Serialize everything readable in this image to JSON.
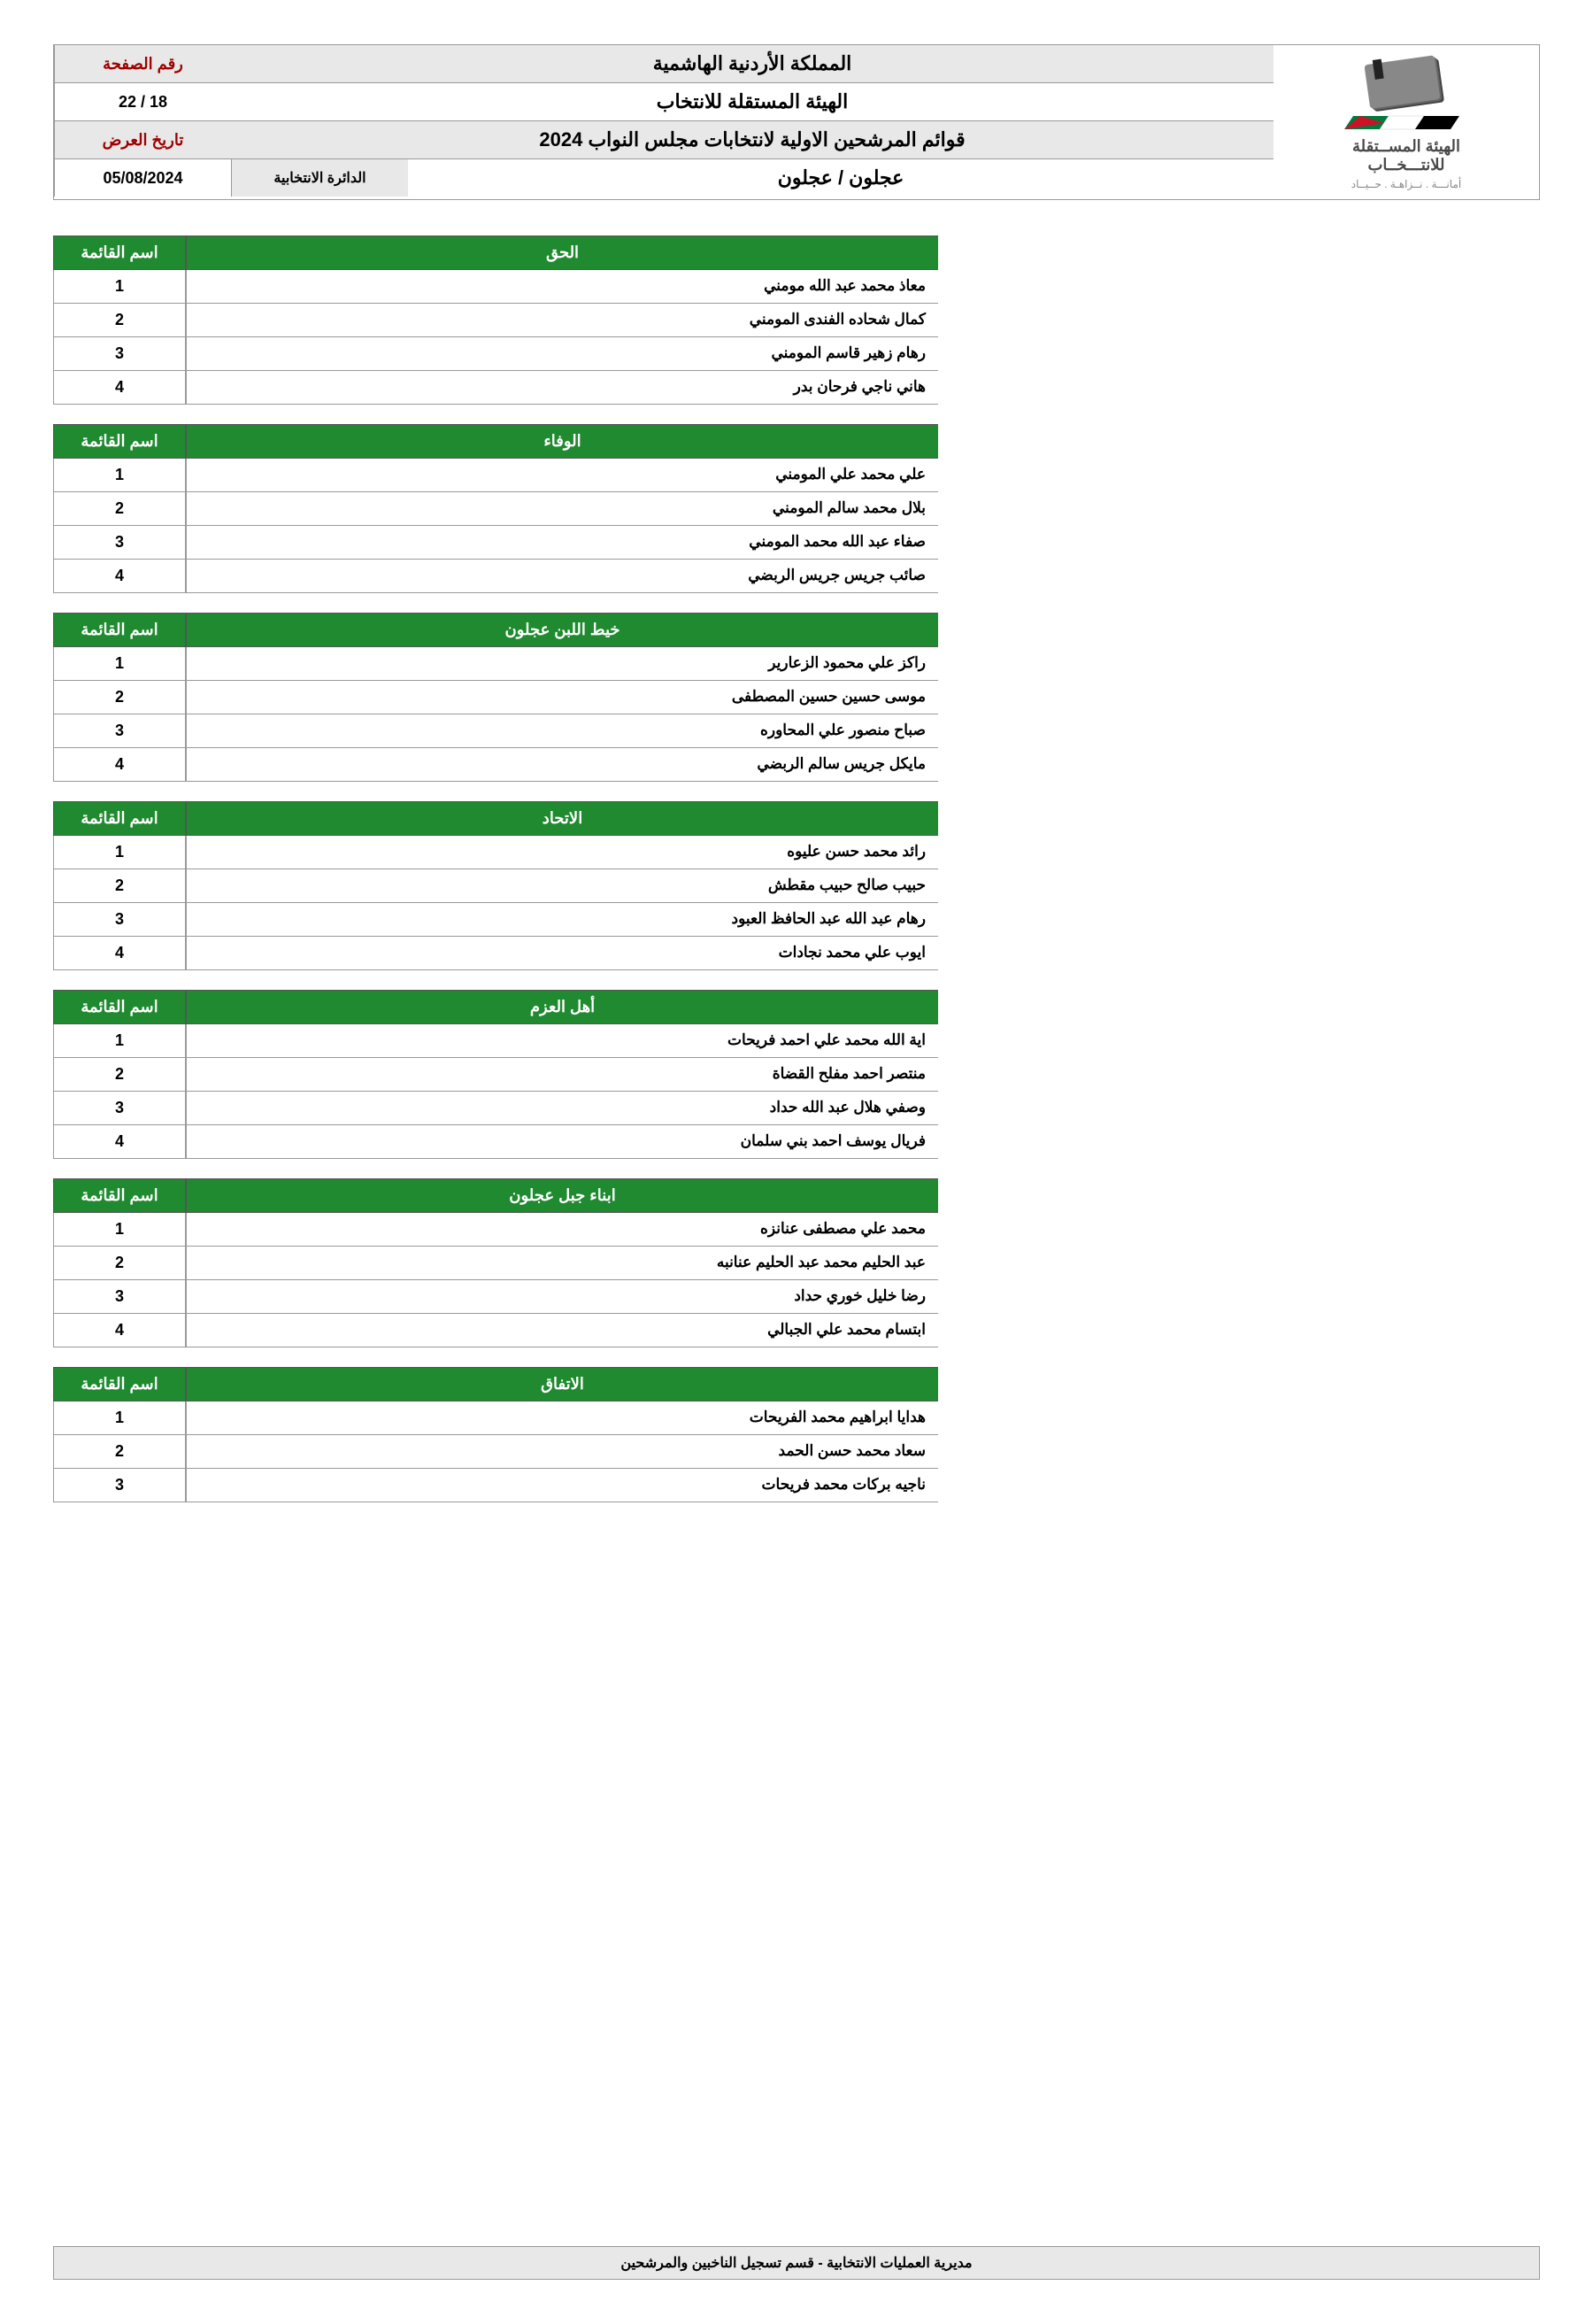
{
  "header": {
    "page_label": "رقم الصفحة",
    "page_value": "18 / 22",
    "country_title": "المملكة الأردنية الهاشمية",
    "org_title": "الهيئة المستقلة للانتخاب",
    "date_label": "تاريخ العرض",
    "date_value": "05/08/2024",
    "doc_title": "قوائم المرشحين الاولية لانتخابات مجلس النواب 2024",
    "district_label": "الدائرة الانتخابية",
    "district_value": "عجلون / عجلون",
    "logo_text_main": "الهيئة المســتقلة",
    "logo_text_sub": "للانتـــخــاب",
    "logo_tagline": "أمانـــة . نــزاهـة . حــيــاد"
  },
  "colors": {
    "header_bg": "#e8e8e8",
    "accent_red": "#a00000",
    "table_header_green": "#1f8a2f",
    "border": "#999999",
    "text": "#000000",
    "white": "#ffffff",
    "jordan_red": "#ce1126",
    "jordan_green": "#007a3d"
  },
  "list_header_num_label": "اسم القائمة",
  "lists": [
    {
      "name": "الحق",
      "candidates": [
        "معاذ محمد عبد الله مومني",
        "كمال شحاده الفندى المومني",
        "رهام زهير قاسم المومني",
        "هاني ناجي فرحان بدر"
      ]
    },
    {
      "name": "الوفاء",
      "candidates": [
        "علي محمد علي المومني",
        "بلال محمد سالم المومني",
        "صفاء عبد الله محمد المومني",
        "صائب جريس جريس الربضي"
      ]
    },
    {
      "name": "خيط اللبن عجلون",
      "candidates": [
        "راكز علي محمود الزعارير",
        "موسى حسين حسين المصطفى",
        "صباح منصور علي المحاوره",
        "مايكل جريس سالم الربضي"
      ]
    },
    {
      "name": "الاتحاد",
      "candidates": [
        "رائد محمد حسن عليوه",
        "حبيب صالح حبيب مقطش",
        "رهام عبد الله عبد الحافظ العبود",
        "ايوب علي محمد نجادات"
      ]
    },
    {
      "name": "أهل العزم",
      "candidates": [
        "اية الله محمد علي احمد فريحات",
        "منتصر احمد مفلح القضاة",
        "وصفي هلال عبد الله حداد",
        "فريال يوسف احمد بني سلمان"
      ]
    },
    {
      "name": "ابناء جبل عجلون",
      "candidates": [
        "محمد علي مصطفى عنانزه",
        "عبد الحليم محمد عبد الحليم عنانبه",
        "رضا خليل خوري حداد",
        "ابتسام محمد علي الجبالي"
      ]
    },
    {
      "name": "الاتفاق",
      "candidates": [
        "هدايا ابراهيم محمد الفريحات",
        "سعاد محمد حسن الحمد",
        "ناجيه بركات محمد فريحات"
      ]
    }
  ],
  "footer": "مديرية العمليات الانتخابية   -   قسم تسجيل الناخبين والمرشحين"
}
